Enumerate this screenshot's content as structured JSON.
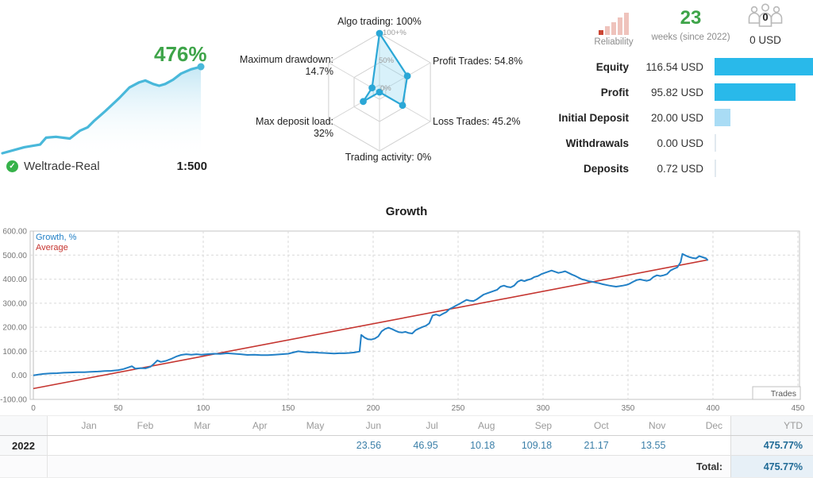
{
  "account": {
    "growth_badge": "476%",
    "broker": "Weltrade-Real",
    "leverage": "1:500",
    "verified_icon": "shield-check-icon"
  },
  "radar": {
    "axis_labels": [
      "Algo trading: 100%",
      "Profit Trades: 54.8%",
      "Loss Trades: 45.2%",
      "Trading activity: 0%",
      "Max deposit load: 32%",
      "Maximum drawdown: 14.7%"
    ],
    "ring_labels": [
      "100+%",
      "50%",
      "0%"
    ]
  },
  "summary": {
    "reliability_label": "Reliability",
    "reliability_icon": "signal-bars-icon",
    "weeks_value": "23",
    "weeks_label": "weeks (since 2022)",
    "subscribers_icon": "people-group-icon",
    "subscribers_count": "0",
    "subscribers_funds": "0 USD",
    "rows": [
      {
        "label": "Equity",
        "value": "116.54 USD",
        "bar_pct": 100,
        "bar_style": "solid"
      },
      {
        "label": "Profit",
        "value": "95.82 USD",
        "bar_pct": 82,
        "bar_style": "solid"
      },
      {
        "label": "Initial Deposit",
        "value": "20.00 USD",
        "bar_pct": 16,
        "bar_style": "light"
      },
      {
        "label": "Withdrawals",
        "value": "0.00 USD",
        "bar_pct": 1.5,
        "bar_style": "faint"
      },
      {
        "label": "Deposits",
        "value": "0.72 USD",
        "bar_pct": 1.5,
        "bar_style": "faint"
      }
    ]
  },
  "colors": {
    "accent_cyan": "#29b9ea",
    "light_cyan": "#a9dcf5",
    "green": "#3ea449",
    "growth_blue": "#2280c6",
    "average_red": "#c53530",
    "radar_blue": "#2ba7d6",
    "reliability_red": "#cb4634",
    "table_value_blue": "#3b7fa8"
  },
  "chart_data": [
    {
      "type": "area",
      "name": "account-growth-sparkline",
      "final_label": "476%",
      "points": [
        [
          0,
          0
        ],
        [
          11,
          7
        ],
        [
          19,
          10
        ],
        [
          22,
          18
        ],
        [
          27,
          19
        ],
        [
          34,
          17
        ],
        [
          39,
          26
        ],
        [
          43,
          30
        ],
        [
          46,
          37
        ],
        [
          52,
          49
        ],
        [
          59,
          64
        ],
        [
          64,
          76
        ],
        [
          69,
          82
        ],
        [
          72,
          84
        ],
        [
          76,
          80
        ],
        [
          79,
          78
        ],
        [
          82,
          80
        ],
        [
          86,
          85
        ],
        [
          90,
          92
        ],
        [
          95,
          97
        ],
        [
          100,
          100
        ]
      ]
    },
    {
      "type": "radar",
      "axes": [
        "Algo trading",
        "Profit Trades",
        "Loss Trades",
        "Trading activity",
        "Max deposit load",
        "Maximum drawdown"
      ],
      "values": [
        100,
        54.8,
        45.2,
        0,
        32,
        14.7
      ],
      "ring_labels": [
        "100+%",
        "50%",
        "0%"
      ]
    },
    {
      "type": "line",
      "title": "Growth",
      "xlabel": "Trades",
      "ylabel": "Growth, %",
      "xlim": [
        0,
        450
      ],
      "ylim": [
        -100,
        600
      ],
      "x_ticks": [
        0,
        50,
        100,
        150,
        200,
        250,
        300,
        350,
        400,
        450
      ],
      "y_ticks": [
        600,
        500,
        400,
        300,
        200,
        100,
        0,
        -100
      ],
      "grid": true,
      "legend_position": "top-left",
      "legend": [
        {
          "name": "Growth, %",
          "color": "#2280c6"
        },
        {
          "name": "Average",
          "color": "#c53530"
        }
      ],
      "series": [
        {
          "name": "Growth, %",
          "color": "#2280c6",
          "points": [
            [
              0,
              0
            ],
            [
              3,
              3
            ],
            [
              6,
              6
            ],
            [
              10,
              8
            ],
            [
              14,
              9
            ],
            [
              18,
              11
            ],
            [
              22,
              12
            ],
            [
              26,
              13
            ],
            [
              30,
              13
            ],
            [
              34,
              15
            ],
            [
              38,
              16
            ],
            [
              42,
              18
            ],
            [
              46,
              19
            ],
            [
              50,
              22
            ],
            [
              53,
              26
            ],
            [
              56,
              33
            ],
            [
              58,
              38
            ],
            [
              60,
              28
            ],
            [
              63,
              30
            ],
            [
              66,
              29
            ],
            [
              69,
              36
            ],
            [
              71,
              48
            ],
            [
              73,
              62
            ],
            [
              75,
              56
            ],
            [
              78,
              60
            ],
            [
              81,
              68
            ],
            [
              84,
              78
            ],
            [
              87,
              85
            ],
            [
              90,
              88
            ],
            [
              93,
              86
            ],
            [
              96,
              88
            ],
            [
              99,
              86
            ],
            [
              102,
              88
            ],
            [
              106,
              90
            ],
            [
              110,
              89
            ],
            [
              114,
              92
            ],
            [
              118,
              90
            ],
            [
              122,
              88
            ],
            [
              126,
              85
            ],
            [
              130,
              86
            ],
            [
              134,
              84
            ],
            [
              138,
              84
            ],
            [
              142,
              86
            ],
            [
              146,
              88
            ],
            [
              150,
              90
            ],
            [
              153,
              95
            ],
            [
              156,
              100
            ],
            [
              159,
              97
            ],
            [
              162,
              95
            ],
            [
              165,
              96
            ],
            [
              168,
              94
            ],
            [
              171,
              93
            ],
            [
              174,
              92
            ],
            [
              177,
              91
            ],
            [
              180,
              92
            ],
            [
              183,
              92
            ],
            [
              186,
              93
            ],
            [
              189,
              95
            ],
            [
              192,
              99
            ],
            [
              193,
              168
            ],
            [
              195,
              157
            ],
            [
              197,
              150
            ],
            [
              199,
              149
            ],
            [
              201,
              153
            ],
            [
              203,
              162
            ],
            [
              205,
              183
            ],
            [
              207,
              193
            ],
            [
              209,
              198
            ],
            [
              211,
              193
            ],
            [
              213,
              186
            ],
            [
              215,
              180
            ],
            [
              217,
              178
            ],
            [
              219,
              181
            ],
            [
              221,
              176
            ],
            [
              223,
              174
            ],
            [
              225,
              188
            ],
            [
              227,
              195
            ],
            [
              229,
              201
            ],
            [
              231,
              206
            ],
            [
              233,
              216
            ],
            [
              235,
              249
            ],
            [
              237,
              253
            ],
            [
              239,
              248
            ],
            [
              241,
              256
            ],
            [
              243,
              263
            ],
            [
              245,
              276
            ],
            [
              247,
              283
            ],
            [
              249,
              291
            ],
            [
              251,
              298
            ],
            [
              253,
              306
            ],
            [
              255,
              314
            ],
            [
              257,
              310
            ],
            [
              259,
              309
            ],
            [
              261,
              316
            ],
            [
              263,
              326
            ],
            [
              265,
              336
            ],
            [
              267,
              341
            ],
            [
              269,
              346
            ],
            [
              271,
              351
            ],
            [
              273,
              356
            ],
            [
              275,
              369
            ],
            [
              277,
              373
            ],
            [
              279,
              368
            ],
            [
              281,
              366
            ],
            [
              283,
              373
            ],
            [
              285,
              389
            ],
            [
              287,
              396
            ],
            [
              289,
              392
            ],
            [
              291,
              397
            ],
            [
              293,
              401
            ],
            [
              295,
              409
            ],
            [
              297,
              413
            ],
            [
              299,
              421
            ],
            [
              301,
              426
            ],
            [
              303,
              431
            ],
            [
              305,
              436
            ],
            [
              307,
              431
            ],
            [
              309,
              426
            ],
            [
              311,
              429
            ],
            [
              313,
              433
            ],
            [
              315,
              426
            ],
            [
              317,
              419
            ],
            [
              319,
              413
            ],
            [
              321,
              406
            ],
            [
              323,
              399
            ],
            [
              325,
              396
            ],
            [
              327,
              391
            ],
            [
              329,
              389
            ],
            [
              331,
              386
            ],
            [
              333,
              383
            ],
            [
              335,
              379
            ],
            [
              337,
              376
            ],
            [
              339,
              373
            ],
            [
              341,
              371
            ],
            [
              343,
              369
            ],
            [
              345,
              371
            ],
            [
              347,
              373
            ],
            [
              349,
              376
            ],
            [
              351,
              381
            ],
            [
              353,
              389
            ],
            [
              355,
              396
            ],
            [
              357,
              399
            ],
            [
              359,
              396
            ],
            [
              361,
              393
            ],
            [
              363,
              397
            ],
            [
              365,
              409
            ],
            [
              367,
              416
            ],
            [
              369,
              413
            ],
            [
              371,
              416
            ],
            [
              373,
              421
            ],
            [
              375,
              436
            ],
            [
              377,
              443
            ],
            [
              379,
              449
            ],
            [
              381,
              471
            ],
            [
              382,
              505
            ],
            [
              384,
              498
            ],
            [
              386,
              492
            ],
            [
              388,
              488
            ],
            [
              390,
              486
            ],
            [
              392,
              496
            ],
            [
              394,
              491
            ],
            [
              396,
              486
            ],
            [
              397,
              478
            ]
          ]
        },
        {
          "name": "Average",
          "color": "#c53530",
          "points": [
            [
              0,
              -55
            ],
            [
              397,
              480
            ]
          ]
        }
      ]
    }
  ],
  "table": {
    "months": [
      "Jan",
      "Feb",
      "Mar",
      "Apr",
      "May",
      "Jun",
      "Jul",
      "Aug",
      "Sep",
      "Oct",
      "Nov",
      "Dec"
    ],
    "ytd_label": "YTD",
    "rows": [
      {
        "year": "2022",
        "values": [
          "",
          "",
          "",
          "",
          "",
          "23.56",
          "46.95",
          "10.18",
          "109.18",
          "21.17",
          "13.55",
          ""
        ],
        "ytd": "475.77%"
      }
    ],
    "total_label": "Total:",
    "total_value": "475.77%"
  }
}
